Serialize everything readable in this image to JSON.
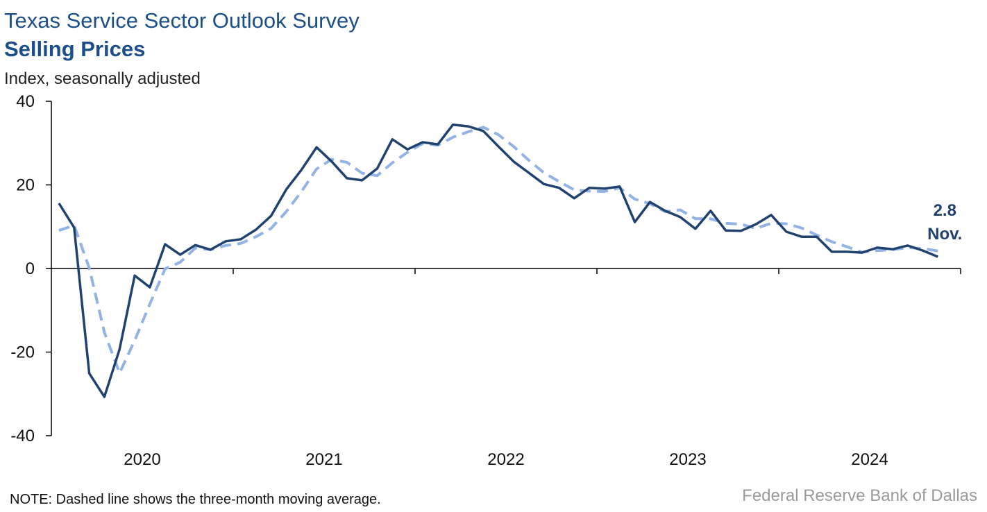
{
  "chart_data": {
    "type": "line",
    "title": "Texas Service Sector Outlook Survey",
    "subtitle": "Selling Prices",
    "y_label": "Index, seasonally adjusted",
    "note": "NOTE: Dashed line shows the three-month moving average.",
    "source": "Federal Reserve Bank of Dallas",
    "categories": [
      null,
      null,
      null,
      null,
      null,
      "2020",
      null,
      null,
      null,
      null,
      null,
      null,
      null,
      null,
      null,
      null,
      null,
      "2021",
      null,
      null,
      null,
      null,
      null,
      null,
      null,
      null,
      null,
      null,
      null,
      "2022",
      null,
      null,
      null,
      null,
      null,
      null,
      null,
      null,
      null,
      null,
      null,
      "2023",
      null,
      null,
      null,
      null,
      null,
      null,
      null,
      null,
      null,
      null,
      null,
      "2024",
      null,
      null,
      null,
      null,
      null
    ],
    "series": [
      {
        "name": "Selling Prices",
        "color": "#21426f",
        "dashed": false,
        "values": [
          15.6,
          9.8,
          -25.1,
          -30.7,
          -19.3,
          -1.7,
          -4.5,
          5.8,
          3.3,
          5.6,
          4.5,
          6.5,
          7.0,
          9.3,
          12.6,
          18.9,
          23.6,
          29.0,
          25.6,
          21.6,
          21.1,
          23.9,
          30.9,
          28.5,
          30.2,
          29.7,
          34.4,
          34.0,
          32.9,
          29.2,
          25.6,
          22.9,
          20.2,
          19.3,
          16.8,
          19.3,
          19.1,
          19.6,
          11.1,
          15.9,
          13.8,
          12.3,
          9.5,
          13.8,
          9.1,
          9.0,
          10.6,
          12.8,
          8.8,
          7.6,
          7.6,
          4.0,
          4.0,
          3.8,
          5.0,
          4.6,
          5.5,
          4.3,
          2.8
        ],
        "value_labels": [
          null,
          null,
          null,
          null,
          null,
          null,
          null,
          null,
          null,
          null,
          null,
          null,
          null,
          null,
          null,
          null,
          null,
          null,
          null,
          null,
          null,
          null,
          null,
          null,
          null,
          null,
          null,
          null,
          null,
          null,
          null,
          null,
          null,
          null,
          null,
          null,
          null,
          null,
          null,
          null,
          null,
          null,
          null,
          null,
          null,
          null,
          null,
          null,
          null,
          null,
          null,
          null,
          null,
          null,
          null,
          null,
          null,
          null,
          "2.8"
        ]
      },
      {
        "name": "Three-month moving average",
        "color": "#92b3e3",
        "dashed": true,
        "values": [
          9.1,
          10.3,
          0.1,
          -15.3,
          -25.0,
          -17.2,
          -8.5,
          -0.1,
          1.5,
          4.9,
          4.5,
          5.5,
          6.0,
          7.6,
          9.6,
          13.6,
          18.4,
          23.8,
          26.1,
          25.4,
          22.8,
          22.2,
          25.3,
          27.8,
          29.9,
          29.5,
          31.4,
          32.7,
          33.8,
          32.0,
          29.2,
          25.9,
          22.9,
          20.8,
          18.8,
          18.5,
          18.4,
          19.3,
          16.6,
          15.5,
          13.6,
          14.0,
          11.9,
          11.9,
          10.8,
          10.6,
          9.6,
          10.8,
          10.7,
          9.7,
          8.0,
          6.4,
          5.2,
          3.9,
          4.3,
          4.5,
          5.0,
          4.8,
          4.2
        ]
      }
    ],
    "annotation": "Nov.",
    "ylim": [
      -40,
      40
    ],
    "yticks": [
      -40,
      -20,
      0,
      20,
      40
    ],
    "grid": false
  }
}
